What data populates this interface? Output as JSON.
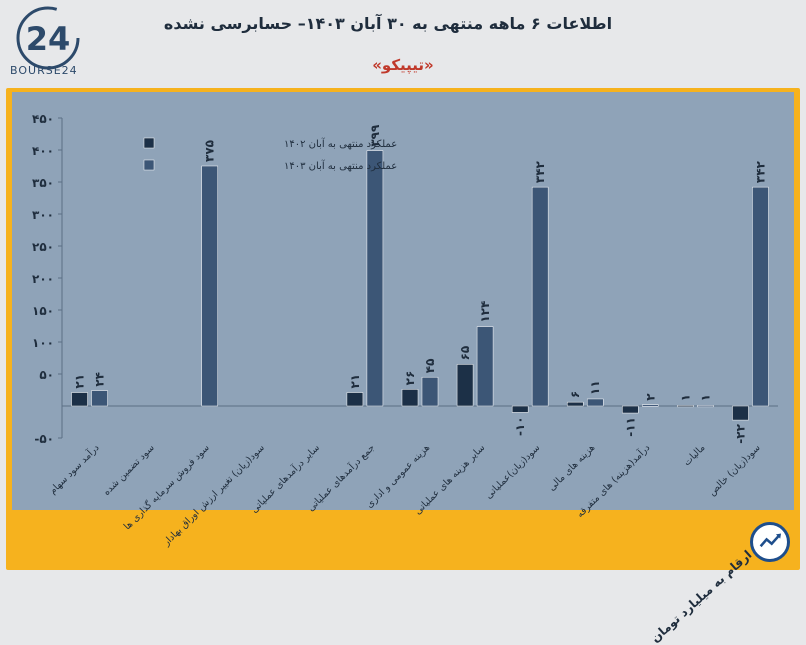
{
  "header": {
    "title": "اطلاعات ۶ ماهه منتهی به ۳۰ آبان ۱۴۰۳– حسابرسی نشده",
    "subtitle": "«تیپیکو»",
    "logo_text": "BOURSE24",
    "logo_mark": "24"
  },
  "note": "ارقام به میلیارد تومان",
  "colors": {
    "frame": "#f6b21e",
    "plot_bg": "#8fa3b8",
    "series_1402": "#1c3047",
    "series_1403": "#3c5676",
    "title": "#1f2d3d",
    "subtitle": "#c0392b"
  },
  "chart_data": {
    "type": "bar",
    "ylim": [
      -50,
      450
    ],
    "yticks": [
      -50,
      50,
      100,
      150,
      200,
      250,
      300,
      350,
      400,
      450
    ],
    "ytick_labels": [
      "-۵۰",
      "۵۰",
      "۱۰۰",
      "۱۵۰",
      "۲۰۰",
      "۲۵۰",
      "۳۰۰",
      "۳۵۰",
      "۴۰۰",
      "۴۵۰"
    ],
    "legend_position": "top-left",
    "categories": [
      "درآمد سود سهام",
      "سود تضمین شده",
      "سود فروش سرمایه گذاری ها",
      "سود(زیان) تغییر ارزش اوراق بهادار",
      "سایر درآمدهای عملیاتی",
      "جمع درآمدهای عملیاتی",
      "هزینه عمومی و اداری",
      "سایر هزینه های عملیاتی",
      "سود(زیان)عملیاتی",
      "هزینه های مالی",
      "درآمد(هزینه) های متفرقه",
      "مالیات",
      "سود(زیان) خالص"
    ],
    "series": [
      {
        "name": "عملکرد منتهی به آبان ۱۴۰۲",
        "values": [
          21,
          null,
          null,
          null,
          null,
          21,
          26,
          65,
          -10,
          6,
          -11,
          1,
          -22
        ],
        "labels": [
          "۲۱",
          "",
          "",
          "",
          "",
          "۲۱",
          "۲۶",
          "۶۵",
          "-۱۰",
          "۶",
          "-۱۱",
          "۱",
          "-۲۲"
        ]
      },
      {
        "name": "عملکرد منتهی به آبان ۱۴۰۳",
        "values": [
          24,
          null,
          375,
          null,
          null,
          399,
          45,
          124,
          342,
          11,
          2,
          1,
          342
        ],
        "labels": [
          "۲۴",
          "",
          "۳۷۵",
          "",
          "",
          "۳۹۹",
          "۴۵",
          "۱۲۴",
          "۳۴۲",
          "۱۱",
          "۲",
          "۱",
          "۳۴۲"
        ]
      }
    ]
  }
}
